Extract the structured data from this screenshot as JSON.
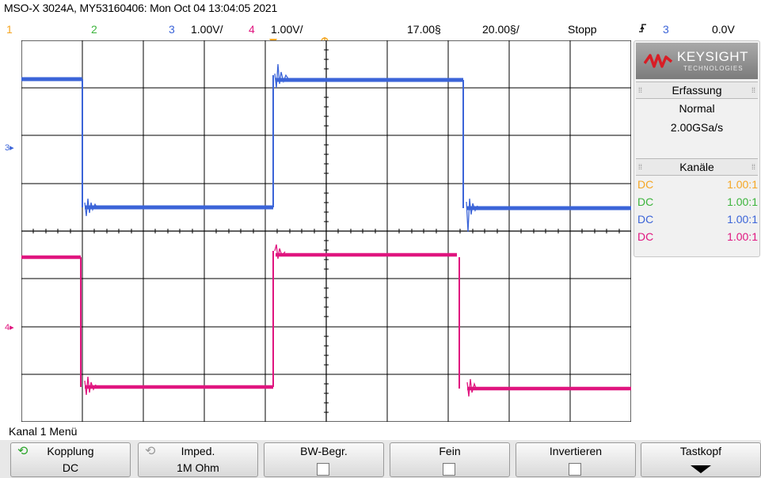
{
  "title": "MSO-X 3024A, MY53160406: Mon Oct 04 13:04:05 2021",
  "status": {
    "ch1": "1",
    "ch2": "2",
    "ch3_num": "3",
    "ch3_scale": "1.00V/",
    "ch4_num": "4",
    "ch4_scale": "1.00V/",
    "delay": "17.00§",
    "timebase": "20.00§/",
    "run_state": "Stopp",
    "trigger_icon": "trigger-edge-icon",
    "trigger_channel": "3",
    "trigger_level": "0.0V"
  },
  "colors": {
    "ch1": "#f5a623",
    "ch2": "#3cb43c",
    "ch3": "#3b64d8",
    "ch4": "#e0157f",
    "grid": "#000000",
    "brand": "#d81d25"
  },
  "brand": {
    "name": "KEYSIGHT",
    "sub": "TECHNOLOGIES"
  },
  "acquisition": {
    "header": "Erfassung",
    "mode": "Normal",
    "rate": "2.00GSa/s"
  },
  "channels": {
    "header": "Kanäle",
    "rows": [
      {
        "coupling": "DC",
        "ratio": "1.00:1"
      },
      {
        "coupling": "DC",
        "ratio": "1.00:1"
      },
      {
        "coupling": "DC",
        "ratio": "1.00:1"
      },
      {
        "coupling": "DC",
        "ratio": "1.00:1"
      }
    ]
  },
  "markers": {
    "ch3": "3",
    "ch4": "4"
  },
  "menu_title": "Kanal 1 Menü",
  "softkeys": [
    {
      "label": "Kopplung",
      "value": "DC"
    },
    {
      "label": "Imped.",
      "value": "1M Ohm"
    },
    {
      "label": "BW-Begr.",
      "value": ""
    },
    {
      "label": "Fein",
      "value": ""
    },
    {
      "label": "Invertieren",
      "value": ""
    },
    {
      "label": "Tastkopf",
      "value": ""
    }
  ]
}
